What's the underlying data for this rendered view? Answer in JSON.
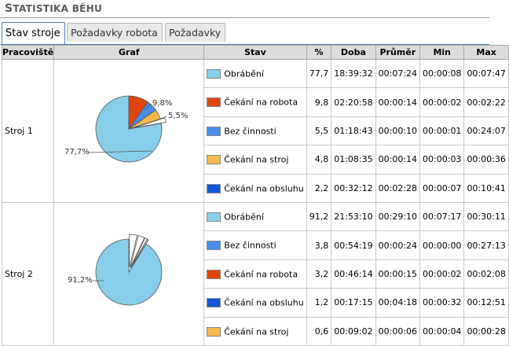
{
  "header": {
    "title_cap": "S",
    "title_rest": "TATISTIKA BĚHU"
  },
  "tabs": [
    {
      "label": "Stav stroje",
      "active": true
    },
    {
      "label": "Požadavky robota",
      "active": false
    },
    {
      "label": "Požadavky",
      "active": false
    }
  ],
  "table": {
    "columns": [
      "Pracoviště",
      "Graf",
      "Stav",
      "%",
      "Doba",
      "Průměr",
      "Min",
      "Max"
    ],
    "groups": [
      {
        "station": "Stroj 1",
        "rows": [
          {
            "stav": "Obrábění",
            "color": "#87ceeb",
            "pct": "77,7",
            "doba": "18:39:32",
            "prumer": "00:07:24",
            "min": "00:00:08",
            "max": "00:07:47"
          },
          {
            "stav": "Čekání na robota",
            "color": "#e0440e",
            "pct": "9,8",
            "doba": "02:20:58",
            "prumer": "00:00:14",
            "min": "00:00:02",
            "max": "00:02:22"
          },
          {
            "stav": "Bez činnosti",
            "color": "#4a8de8",
            "pct": "5,5",
            "doba": "01:18:43",
            "prumer": "00:00:10",
            "min": "00:00:01",
            "max": "00:24:07"
          },
          {
            "stav": "Čekání na stroj",
            "color": "#f5b84a",
            "pct": "4,8",
            "doba": "01:08:35",
            "prumer": "00:00:14",
            "min": "00:00:03",
            "max": "00:00:36"
          },
          {
            "stav": "Čekání na obsluhu",
            "color": "#1255d8",
            "pct": "2,2",
            "doba": "00:32:12",
            "prumer": "00:02:28",
            "min": "00:00:07",
            "max": "00:10:41"
          }
        ],
        "pie_labels": [
          "77,7%",
          "9,8%",
          "5,5%"
        ]
      },
      {
        "station": "Stroj 2",
        "rows": [
          {
            "stav": "Obrábění",
            "color": "#87ceeb",
            "pct": "91,2",
            "doba": "21:53:10",
            "prumer": "00:29:10",
            "min": "00:07:17",
            "max": "00:30:11"
          },
          {
            "stav": "Bez činnosti",
            "color": "#4a8de8",
            "pct": "3,8",
            "doba": "00:54:19",
            "prumer": "00:00:24",
            "min": "00:00:00",
            "max": "00:27:13"
          },
          {
            "stav": "Čekání na robota",
            "color": "#e0440e",
            "pct": "3,2",
            "doba": "00:46:14",
            "prumer": "00:00:15",
            "min": "00:00:02",
            "max": "00:02:08"
          },
          {
            "stav": "Čekání na obsluhu",
            "color": "#1255d8",
            "pct": "1,2",
            "doba": "00:17:15",
            "prumer": "00:04:18",
            "min": "00:00:32",
            "max": "00:12:51"
          },
          {
            "stav": "Čekání na stroj",
            "color": "#f5b84a",
            "pct": "0,6",
            "doba": "00:09:02",
            "prumer": "00:00:06",
            "min": "00:00:04",
            "max": "00:00:28"
          }
        ],
        "pie_labels": [
          "91,2%"
        ]
      }
    ]
  }
}
